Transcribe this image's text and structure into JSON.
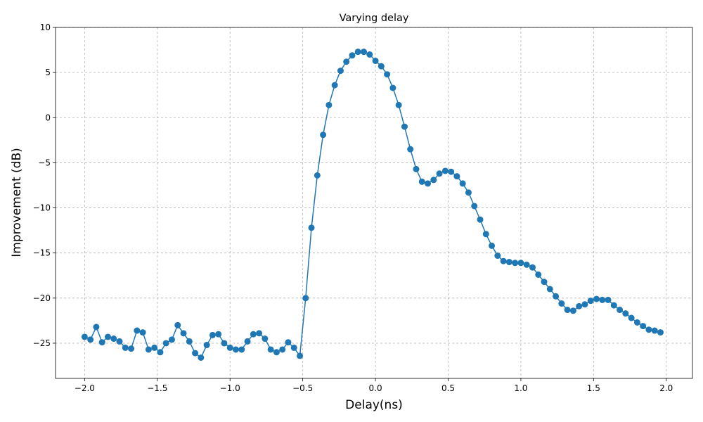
{
  "chart_data": {
    "type": "line",
    "title": "Varying delay",
    "x_label": "Delay(ns)",
    "y_label": "Improvement (dB)",
    "color": "#1f77b4",
    "grid": true,
    "x": [
      -2.0,
      -1.96,
      -1.92,
      -1.88,
      -1.84,
      -1.8,
      -1.76,
      -1.72,
      -1.68,
      -1.64,
      -1.6,
      -1.56,
      -1.52,
      -1.48,
      -1.44,
      -1.4,
      -1.36,
      -1.32,
      -1.28,
      -1.24,
      -1.2,
      -1.16,
      -1.12,
      -1.08,
      -1.04,
      -1.0,
      -0.96,
      -0.92,
      -0.88,
      -0.84,
      -0.8,
      -0.76,
      -0.72,
      -0.68,
      -0.64,
      -0.6,
      -0.56,
      -0.52,
      -0.48,
      -0.44,
      -0.4,
      -0.36,
      -0.32,
      -0.28,
      -0.24,
      -0.2,
      -0.16,
      -0.12,
      -0.08,
      -0.04,
      0.0,
      0.04,
      0.08,
      0.12,
      0.16,
      0.2,
      0.24,
      0.28,
      0.32,
      0.36,
      0.4,
      0.44,
      0.48,
      0.52,
      0.56,
      0.6,
      0.64,
      0.68,
      0.72,
      0.76,
      0.8,
      0.84,
      0.88,
      0.92,
      0.96,
      1.0,
      1.04,
      1.08,
      1.12,
      1.16,
      1.2,
      1.24,
      1.28,
      1.32,
      1.36,
      1.4,
      1.44,
      1.48,
      1.52,
      1.56,
      1.6,
      1.64,
      1.68,
      1.72,
      1.76,
      1.8,
      1.84,
      1.88,
      1.92,
      1.96
    ],
    "values": [
      -24.3,
      -24.6,
      -23.2,
      -24.9,
      -24.3,
      -24.5,
      -24.8,
      -25.5,
      -25.6,
      -23.6,
      -23.8,
      -25.7,
      -25.5,
      -26.0,
      -25.0,
      -24.6,
      -23.0,
      -23.9,
      -24.8,
      -26.1,
      -26.6,
      -25.2,
      -24.1,
      -24.0,
      -25.0,
      -25.5,
      -25.7,
      -25.7,
      -24.8,
      -24.0,
      -23.9,
      -24.5,
      -25.7,
      -26.0,
      -25.7,
      -24.9,
      -25.5,
      -26.4,
      -20.0,
      -12.2,
      -6.4,
      -1.9,
      1.4,
      3.6,
      5.2,
      6.2,
      6.9,
      7.3,
      7.3,
      7.0,
      6.3,
      5.7,
      4.8,
      3.3,
      1.4,
      -1.0,
      -3.5,
      -5.7,
      -7.1,
      -7.3,
      -6.9,
      -6.2,
      -5.9,
      -6.0,
      -6.5,
      -7.3,
      -8.3,
      -9.8,
      -11.3,
      -12.9,
      -14.2,
      -15.3,
      -15.9,
      -16.0,
      -16.1,
      -16.1,
      -16.3,
      -16.6,
      -17.4,
      -18.2,
      -19.0,
      -19.8,
      -20.6,
      -21.3,
      -21.4,
      -20.9,
      -20.7,
      -20.3,
      -20.1,
      -20.2,
      -20.2,
      -20.8,
      -21.3,
      -21.7,
      -22.2,
      -22.7,
      -23.1,
      -23.5,
      -23.6,
      -23.8
    ],
    "xlim": [
      -2.2,
      2.18
    ],
    "ylim": [
      -28.9,
      10
    ],
    "xticks": [
      {
        "value": -2.0,
        "label": "−2.0"
      },
      {
        "value": -1.5,
        "label": "−1.5"
      },
      {
        "value": -1.0,
        "label": "−1.0"
      },
      {
        "value": -0.5,
        "label": "−0.5"
      },
      {
        "value": 0.0,
        "label": "0.0"
      },
      0.5,
      {
        "value": 1.0,
        "label": "1.0"
      },
      1.5,
      {
        "value": 2.0,
        "label": "2.0"
      }
    ],
    "yticks": [
      {
        "value": -25,
        "label": "−25"
      },
      {
        "value": -20,
        "label": "−20"
      },
      {
        "value": -15,
        "label": "−15"
      },
      {
        "value": -10,
        "label": "−10"
      },
      {
        "value": -5,
        "label": "−5"
      },
      0,
      5,
      10
    ]
  }
}
